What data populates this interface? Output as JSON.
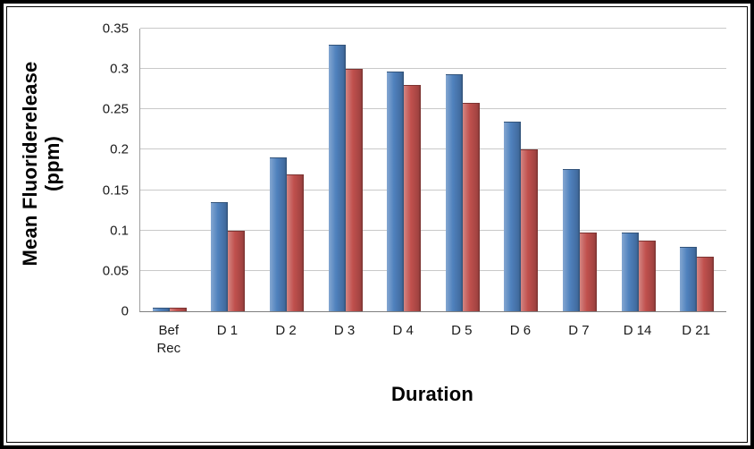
{
  "chart_data": {
    "type": "bar",
    "title": "",
    "xlabel": "Duration",
    "ylabel": "Mean Fluoriderelease (ppm)",
    "ylabel_lines": [
      "Mean Fluoriderelease",
      "(ppm)"
    ],
    "categories": [
      "Bef Rec",
      "D 1",
      "D 2",
      "D 3",
      "D 4",
      "D 5",
      "D 6",
      "D 7",
      "D 14",
      "D 21"
    ],
    "series": [
      {
        "name": "blue",
        "color": "#4F81BD",
        "values": [
          0.005,
          0.135,
          0.19,
          0.33,
          0.297,
          0.293,
          0.235,
          0.176,
          0.098,
          0.08
        ]
      },
      {
        "name": "red",
        "color": "#C0504D",
        "values": [
          0.005,
          0.1,
          0.17,
          0.3,
          0.28,
          0.258,
          0.2,
          0.098,
          0.088,
          0.068
        ]
      }
    ],
    "ylim": [
      0,
      0.35
    ],
    "ytick_step": 0.05,
    "yticks": [
      "0",
      "0.05",
      "0.1",
      "0.15",
      "0.2",
      "0.25",
      "0.3",
      "0.35"
    ],
    "grid": true,
    "legend": "none"
  }
}
